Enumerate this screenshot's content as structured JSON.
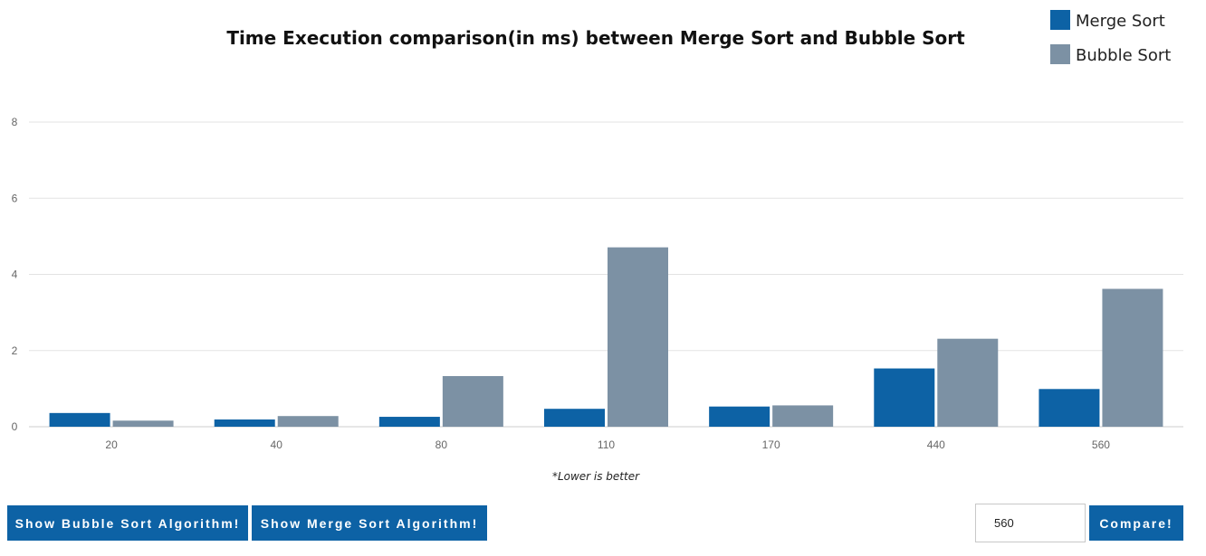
{
  "chart_data": {
    "type": "bar",
    "title": "Time Execution comparison(in ms) between Merge Sort and Bubble Sort",
    "categories": [
      "20",
      "40",
      "80",
      "110",
      "170",
      "440",
      "560"
    ],
    "series": [
      {
        "name": "Merge Sort",
        "color": "#0d62a5",
        "values": [
          0.36,
          0.19,
          0.26,
          0.47,
          0.53,
          1.53,
          0.99
        ]
      },
      {
        "name": "Bubble Sort",
        "color": "#7c91a4",
        "values": [
          0.16,
          0.28,
          1.33,
          4.71,
          0.56,
          2.31,
          3.62
        ]
      }
    ],
    "ylim": [
      0,
      8
    ],
    "yticks": [
      "0",
      "2",
      "4",
      "6",
      "8"
    ],
    "grid": true,
    "legend_position": "top-right",
    "note": "*Lower is better"
  },
  "controls": {
    "bubble_button_label": "Show Bubble Sort Algorithm!",
    "merge_button_label": "Show Merge Sort Algorithm!",
    "size_value": "560",
    "compare_button_label": "Compare!"
  }
}
